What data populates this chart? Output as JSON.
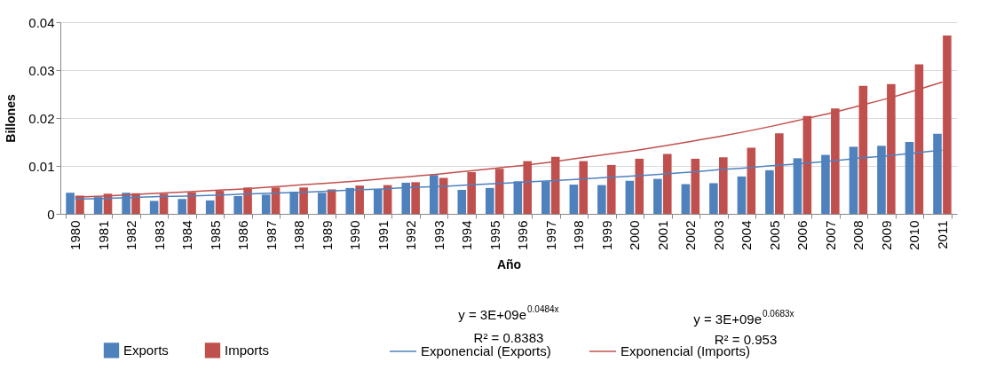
{
  "chart_data": {
    "type": "bar",
    "xlabel": "Año",
    "ylabel": "Billones",
    "categories": [
      "1980",
      "1981",
      "1982",
      "1983",
      "1984",
      "1985",
      "1986",
      "1987",
      "1988",
      "1989",
      "1990",
      "1991",
      "1992",
      "1993",
      "1994",
      "1995",
      "1996",
      "1997",
      "1998",
      "1999",
      "2000",
      "2001",
      "2002",
      "2003",
      "2004",
      "2005",
      "2006",
      "2007",
      "2008",
      "2009",
      "2010",
      "2011"
    ],
    "series": [
      {
        "name": "Exports",
        "color": "#4f81bd",
        "values": [
          0.0044,
          0.0035,
          0.0044,
          0.0027,
          0.0031,
          0.0028,
          0.0037,
          0.004,
          0.0046,
          0.0044,
          0.0054,
          0.0052,
          0.0065,
          0.0081,
          0.005,
          0.0054,
          0.0068,
          0.0068,
          0.0061,
          0.006,
          0.0069,
          0.0073,
          0.0062,
          0.0064,
          0.0078,
          0.0091,
          0.0116,
          0.0123,
          0.014,
          0.0142,
          0.015,
          0.0167
        ]
      },
      {
        "name": "Imports",
        "color": "#c0504d",
        "values": [
          0.0038,
          0.0042,
          0.0043,
          0.0042,
          0.0045,
          0.0048,
          0.0055,
          0.0055,
          0.0055,
          0.0051,
          0.0059,
          0.006,
          0.0066,
          0.0075,
          0.0087,
          0.0094,
          0.011,
          0.0119,
          0.011,
          0.0102,
          0.0115,
          0.0125,
          0.0115,
          0.0118,
          0.0138,
          0.0168,
          0.0204,
          0.022,
          0.0267,
          0.0271,
          0.0312,
          0.0372
        ]
      },
      {
        "name": "Exponencial (Exports)",
        "type": "line",
        "color": "#4f81bd",
        "values": [
          0.0031,
          0.0032,
          0.0034,
          0.0036,
          0.0037,
          0.0039,
          0.0041,
          0.0043,
          0.0045,
          0.0047,
          0.005,
          0.0052,
          0.0055,
          0.0057,
          0.006,
          0.0063,
          0.0066,
          0.0069,
          0.0072,
          0.0076,
          0.0079,
          0.0083,
          0.0087,
          0.0092,
          0.0096,
          0.0101,
          0.0105,
          0.011,
          0.0116,
          0.0121,
          0.0127,
          0.0133
        ]
      },
      {
        "name": "Exponencial (Imports)",
        "type": "line",
        "color": "#c0504d",
        "values": [
          0.0035,
          0.0037,
          0.004,
          0.0043,
          0.0046,
          0.0049,
          0.0052,
          0.0056,
          0.006,
          0.0064,
          0.0068,
          0.0073,
          0.0078,
          0.0083,
          0.0089,
          0.0095,
          0.0101,
          0.0108,
          0.0116,
          0.0124,
          0.0132,
          0.0141,
          0.0151,
          0.0161,
          0.0172,
          0.0184,
          0.0197,
          0.021,
          0.0225,
          0.024,
          0.0257,
          0.0275
        ]
      }
    ],
    "ylim": [
      0,
      0.04
    ],
    "yticks": [
      0,
      0.01,
      0.02,
      0.03,
      0.04
    ],
    "grid": "y",
    "legend": "bottom",
    "annotations": [
      "y = 3E+09e$^{0.0484x}$",
      "R² = 0.8383",
      "y = 3E+09e$^{0.0683x}$",
      "R² = 0.953"
    ]
  }
}
